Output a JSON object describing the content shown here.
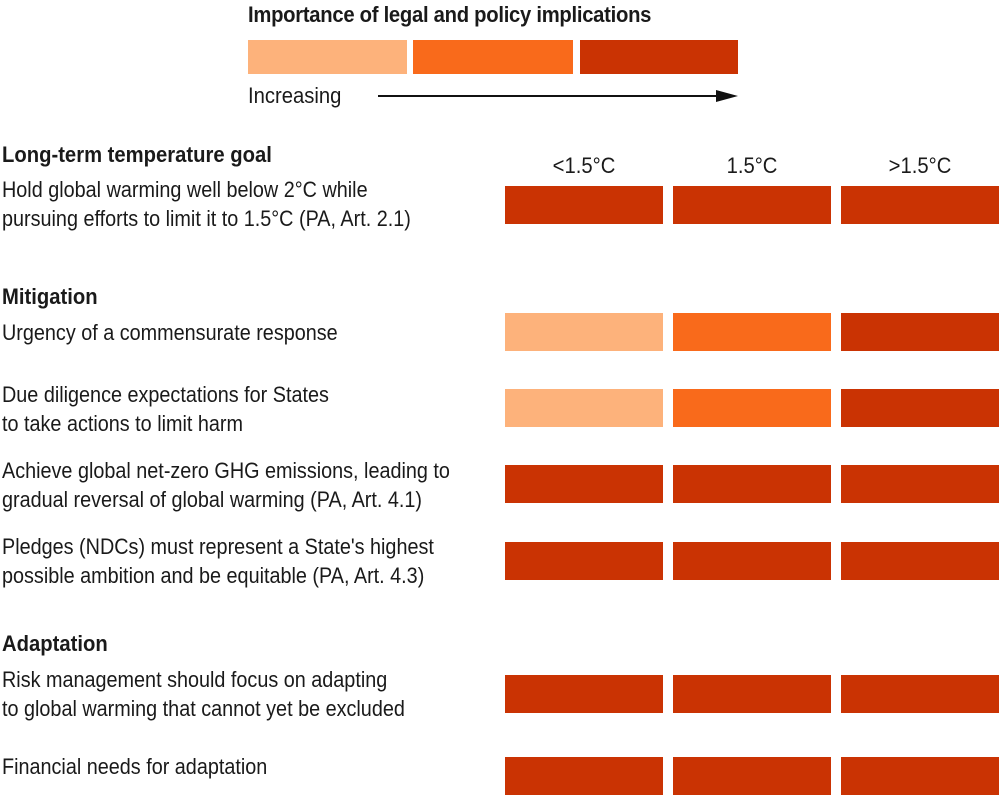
{
  "legend": {
    "title": "Importance of legal and policy implications",
    "direction_label": "Increasing",
    "levels": [
      {
        "level": 1,
        "color": "#fdb27b"
      },
      {
        "level": 2,
        "color": "#f96a1b"
      },
      {
        "level": 3,
        "color": "#ca3303"
      }
    ]
  },
  "chart_data": {
    "type": "heatmap",
    "title": "Importance of legal and policy implications",
    "columns": [
      "<1.5°C",
      "1.5°C",
      ">1.5°C"
    ],
    "sections": [
      {
        "title": "Long-term temperature goal",
        "rows": [
          {
            "lines": [
              "Hold global warming well below 2°C while",
              "pursuing efforts to limit it to 1.5°C (PA, Art. 2.1)"
            ],
            "values": [
              3,
              3,
              3
            ]
          }
        ]
      },
      {
        "title": "Mitigation",
        "rows": [
          {
            "lines": [
              "Urgency of a commensurate response"
            ],
            "values": [
              1,
              2,
              3
            ]
          },
          {
            "lines": [
              "Due diligence expectations for States",
              "to take actions to limit harm"
            ],
            "values": [
              1,
              2,
              3
            ]
          },
          {
            "lines": [
              "Achieve global net-zero GHG emissions, leading to",
              "gradual reversal of global warming (PA, Art. 4.1)"
            ],
            "values": [
              3,
              3,
              3
            ]
          },
          {
            "lines": [
              "Pledges (NDCs) must represent a State's highest",
              "possible ambition and be equitable (PA, Art. 4.3)"
            ],
            "values": [
              3,
              3,
              3
            ]
          }
        ]
      },
      {
        "title": "Adaptation",
        "rows": [
          {
            "lines": [
              "Risk management should focus on adapting",
              "to global warming that cannot yet be excluded"
            ],
            "values": [
              3,
              3,
              3
            ]
          },
          {
            "lines": [
              "Financial needs for adaptation"
            ],
            "values": [
              3,
              3,
              3
            ]
          }
        ]
      }
    ]
  }
}
